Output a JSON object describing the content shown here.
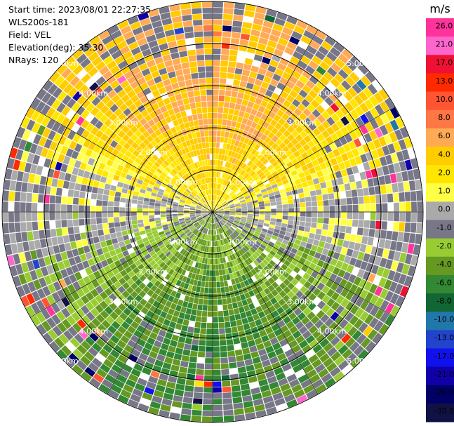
{
  "info": {
    "start_time": "Start time: 2023/08/01 22:27:35",
    "site": "WLS200s-181",
    "field": "Field: VEL",
    "elevation": "Elevation(deg): 35.30",
    "nrays": "NRays: 120"
  },
  "chart_data": {
    "type": "heatmap",
    "projection": "polar-ppi",
    "title": "",
    "nrays": 120,
    "range_rings_km": [
      1.0,
      2.0,
      3.0,
      4.0,
      5.0
    ],
    "range_labels": [
      "1.00km",
      "2.00km",
      "3.00km",
      "4.00km",
      "5.00km"
    ],
    "max_range_km": 5.0,
    "colorbar": {
      "unit": "m/s",
      "ticks": [
        "26.0",
        "21.0",
        "17.0",
        "13.0",
        "10.0",
        "8.0",
        "6.0",
        "4.0",
        "2.0",
        "1.0",
        "0.0",
        "-1.0",
        "-2.0",
        "-4.0",
        "-6.0",
        "-8.0",
        "-10.0",
        "-13.0",
        "-17.0",
        "-21.0",
        "-26.0",
        "-30.0"
      ],
      "colors": [
        "#ff3399",
        "#ff66cc",
        "#ee1133",
        "#ff2a00",
        "#ff5533",
        "#ff7744",
        "#ffaa55",
        "#ffcc00",
        "#ffe600",
        "#ffff44",
        "#aaaaaa",
        "#777788",
        "#99cc33",
        "#669922",
        "#338833",
        "#116633",
        "#2277aa",
        "#2244cc",
        "#1111ee",
        "#1100aa",
        "#000066",
        "#111144"
      ]
    },
    "field_summary": {
      "north": "positive 2.0 to 8.0 m/s",
      "south": "negative -2.0 to -6.0 m/s",
      "east_west": "near 0.0 m/s"
    }
  }
}
